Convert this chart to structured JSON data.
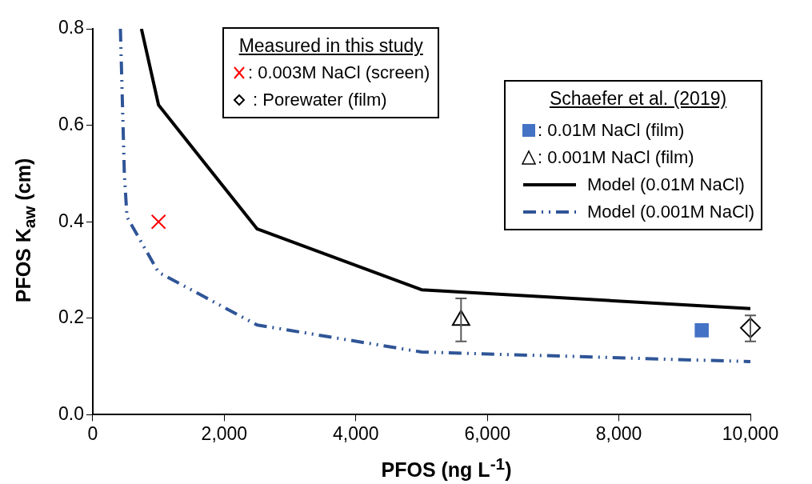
{
  "chart_data": {
    "type": "scatter",
    "xlabel": "PFOS (ng L$^{-1}$)",
    "ylabel": "PFOS K$_{aw}$ (cm)",
    "legend_title": "Measured in this study",
    "annotations": [
      "Schaefer et al. (2019)"
    ],
    "legend": "top right",
    "grid": false,
    "xlim": [
      0,
      10000
    ],
    "xticks": [
      0,
      {
        "value": 2000,
        "label": "2,000"
      },
      {
        "value": 4000,
        "label": "4,000"
      },
      {
        "value": 6000,
        "label": "6,000"
      },
      {
        "value": 8000,
        "label": "8,000"
      },
      {
        "value": 10000,
        "label": "10,000"
      }
    ],
    "ylim": [
      0,
      0.8
    ],
    "yticks": [
      {
        "value": 0,
        "label": "0.0"
      },
      0.2,
      0.4,
      0.6,
      0.8
    ],
    "series": [
      {
        "name": ": 0.003M NaCl (screen)",
        "marker": "cross",
        "color": "#ff0000",
        "x": [
          1000
        ],
        "values": [
          0.4
        ]
      },
      {
        "name": " : Porewater (film)",
        "marker": "diamond",
        "color": "#000000",
        "x": [
          10000
        ],
        "values": [
          0.18
        ],
        "errors": [
          [
            0.152,
            0.206
          ]
        ]
      },
      {
        "name": ": 0.01M NaCl (film)",
        "marker": "square",
        "color": "#4472c4",
        "x": [
          9260
        ],
        "values": [
          0.175
        ]
      },
      {
        "name": ": 0.001M NaCl (film)",
        "marker": "triangle",
        "color": "#000000",
        "x": [
          5600
        ],
        "values": [
          0.196
        ],
        "errors": [
          [
            0.152,
            0.241
          ]
        ]
      },
      {
        "name": "Model (0.01M NaCl)",
        "type": "line",
        "marker": "none",
        "line_style": "solid",
        "color": "#000000",
        "x": [
          740,
          1000,
          2500,
          5000,
          10000
        ],
        "values": [
          0.8,
          0.642,
          0.385,
          0.259,
          0.22
        ]
      },
      {
        "name": "Model (0.001M NaCl)",
        "type": "line",
        "marker": "none",
        "line_style": "dashed",
        "color": "#2f5597",
        "x": [
          420,
          450,
          480,
          520,
          1000,
          2500,
          5000,
          10000
        ],
        "values": [
          0.8,
          0.65,
          0.5,
          0.41,
          0.295,
          0.186,
          0.13,
          0.11
        ]
      }
    ]
  }
}
